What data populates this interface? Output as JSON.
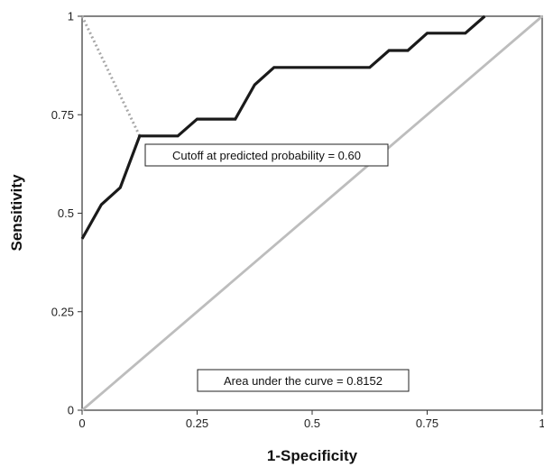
{
  "chart_data": {
    "type": "line",
    "title": "",
    "xlabel": "1-Specificity",
    "ylabel": "Sensitivity",
    "xlim": [
      0,
      1
    ],
    "ylim": [
      0,
      1
    ],
    "x_ticks": [
      0,
      0.25,
      0.5,
      0.75,
      1
    ],
    "x_tick_labels": [
      "0",
      "0.25",
      "0.5",
      "0.75",
      "1"
    ],
    "y_ticks": [
      0,
      0.25,
      0.5,
      0.75,
      1
    ],
    "y_tick_labels": [
      "0",
      "0.25",
      "0.5",
      "0.75",
      "1"
    ],
    "grid": false,
    "legend": "none",
    "series": [
      {
        "style": "solid",
        "color": "#1a1a1a",
        "x": [
          0,
          0.042,
          0.083,
          0.125,
          0.208,
          0.25,
          0.333,
          0.375,
          0.417,
          0.458,
          0.5,
          0.542,
          0.583,
          0.625,
          0.667,
          0.708,
          0.75,
          0.792,
          0.833,
          0.875
        ],
        "y": [
          0.435,
          0.522,
          0.565,
          0.696,
          0.696,
          0.739,
          0.739,
          0.826,
          0.87,
          0.87,
          0.87,
          0.87,
          0.87,
          0.87,
          0.913,
          0.913,
          0.957,
          0.957,
          0.957,
          1.0
        ]
      },
      {
        "style": "solid",
        "color": "#bdbdbd",
        "x": [
          0,
          1
        ],
        "y": [
          0,
          1
        ]
      },
      {
        "style": "dotted",
        "color": "#a8a8a8",
        "x": [
          0,
          0.125
        ],
        "y": [
          1,
          0.696
        ]
      }
    ],
    "annotations": [
      {
        "text": "Cutoff at predicted probability = 0.60"
      },
      {
        "text": "Area under the curve = 0.8152"
      }
    ]
  }
}
